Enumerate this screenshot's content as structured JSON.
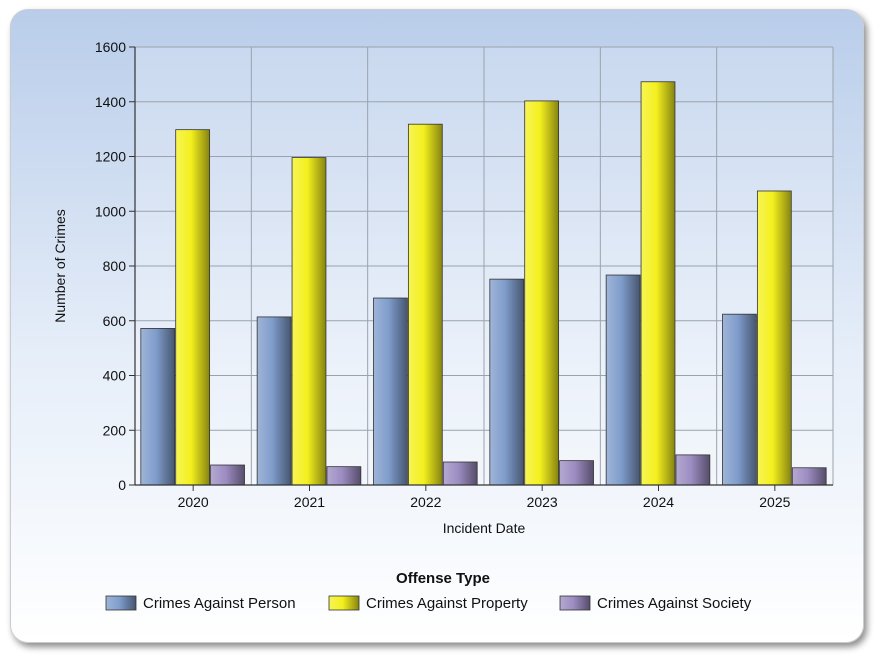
{
  "chart_data": {
    "type": "bar",
    "categories": [
      "2020",
      "2021",
      "2022",
      "2023",
      "2024",
      "2025"
    ],
    "series": [
      {
        "name": "Crimes Against Person",
        "values": [
          572,
          614,
          683,
          752,
          767,
          624
        ],
        "color": "#7f9ccb"
      },
      {
        "name": "Crimes Against Property",
        "values": [
          1298,
          1196,
          1318,
          1403,
          1473,
          1074
        ],
        "color": "#f4f01e"
      },
      {
        "name": "Crimes Against Society",
        "values": [
          73,
          67,
          84,
          89,
          110,
          63
        ],
        "color": "#9c8cc1"
      }
    ],
    "title": "",
    "xlabel": "Incident Date",
    "ylabel": "Number of Crimes",
    "ylim": [
      0,
      1600
    ],
    "yticks": [
      0,
      200,
      400,
      600,
      800,
      1000,
      1200,
      1400,
      1600
    ],
    "grid": true,
    "legend": {
      "title": "Offense Type",
      "placement": "bottom"
    }
  }
}
